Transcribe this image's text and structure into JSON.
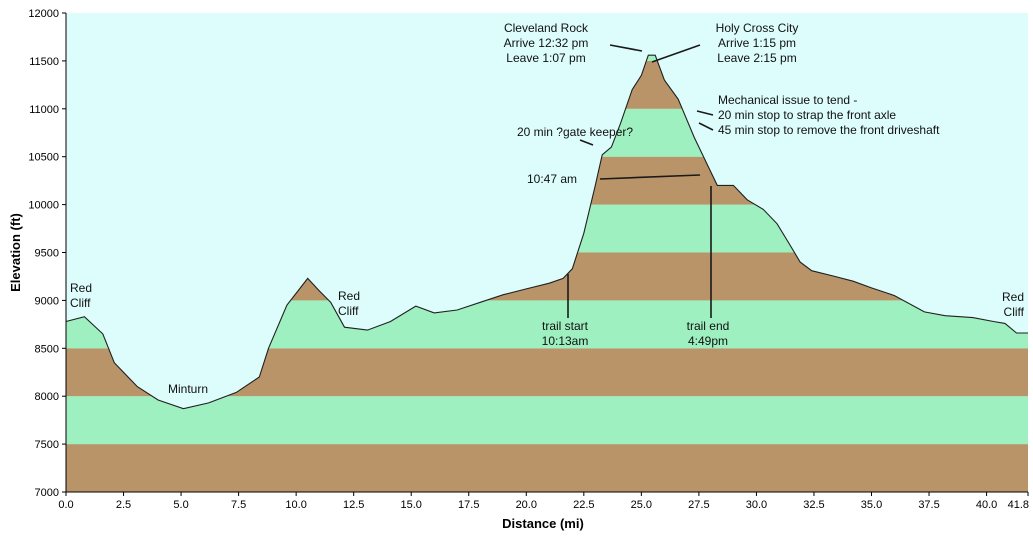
{
  "chart_data": {
    "type": "area",
    "xlabel": "Distance (mi)",
    "ylabel": "Elevation (ft)",
    "xlim": [
      0,
      41.8
    ],
    "ylim": [
      7000,
      12000
    ],
    "x_ticks": [
      "0.0",
      "2.5",
      "5.0",
      "7.5",
      "10.0",
      "12.5",
      "15.0",
      "17.5",
      "20.0",
      "22.5",
      "25.0",
      "27.5",
      "30.0",
      "32.5",
      "35.0",
      "37.5",
      "40.0",
      "41.8"
    ],
    "y_ticks": [
      "7000",
      "7500",
      "8000",
      "8500",
      "9000",
      "9500",
      "10000",
      "10500",
      "11000",
      "11500",
      "12000"
    ],
    "band_size": 500,
    "colors": {
      "sky": "#ddfcfc",
      "band_light": "#9ff0c0",
      "band_dark": "#b89468",
      "outline": "#202020",
      "axis": "#000000"
    },
    "profile": [
      [
        0.0,
        8780
      ],
      [
        0.8,
        8830
      ],
      [
        1.6,
        8650
      ],
      [
        2.1,
        8350
      ],
      [
        3.1,
        8100
      ],
      [
        4.0,
        7960
      ],
      [
        5.1,
        7870
      ],
      [
        6.2,
        7930
      ],
      [
        7.4,
        8040
      ],
      [
        8.4,
        8200
      ],
      [
        8.8,
        8500
      ],
      [
        9.6,
        8950
      ],
      [
        10.5,
        9230
      ],
      [
        11.0,
        9100
      ],
      [
        11.5,
        8980
      ],
      [
        12.1,
        8720
      ],
      [
        13.1,
        8690
      ],
      [
        14.1,
        8780
      ],
      [
        15.2,
        8940
      ],
      [
        16.0,
        8870
      ],
      [
        17.0,
        8900
      ],
      [
        18.0,
        8980
      ],
      [
        19.0,
        9060
      ],
      [
        20.0,
        9120
      ],
      [
        21.0,
        9180
      ],
      [
        21.6,
        9230
      ],
      [
        22.0,
        9330
      ],
      [
        22.5,
        9700
      ],
      [
        23.0,
        10200
      ],
      [
        23.3,
        10520
      ],
      [
        23.7,
        10600
      ],
      [
        24.1,
        10850
      ],
      [
        24.6,
        11200
      ],
      [
        25.0,
        11350
      ],
      [
        25.3,
        11560
      ],
      [
        25.6,
        11560
      ],
      [
        26.0,
        11300
      ],
      [
        26.6,
        11100
      ],
      [
        27.3,
        10700
      ],
      [
        27.8,
        10450
      ],
      [
        28.3,
        10200
      ],
      [
        29.0,
        10200
      ],
      [
        29.6,
        10050
      ],
      [
        30.3,
        9950
      ],
      [
        30.9,
        9800
      ],
      [
        31.4,
        9600
      ],
      [
        31.9,
        9400
      ],
      [
        32.4,
        9310
      ],
      [
        33.4,
        9250
      ],
      [
        34.2,
        9200
      ],
      [
        35.0,
        9130
      ],
      [
        36.0,
        9050
      ],
      [
        37.3,
        8880
      ],
      [
        38.2,
        8840
      ],
      [
        39.4,
        8820
      ],
      [
        40.3,
        8780
      ],
      [
        40.8,
        8760
      ],
      [
        41.3,
        8660
      ],
      [
        41.8,
        8660
      ]
    ],
    "annotations": [
      {
        "lines": [
          "Cleveland Rock",
          "Arrive 12:32 pm",
          "Leave 1:07 pm"
        ]
      },
      {
        "lines": [
          "Holy Cross City",
          "Arrive 1:15 pm",
          "Leave 2:15 pm"
        ]
      },
      {
        "lines": [
          "Mechanical issue to tend -",
          "20 min stop to strap the front axle",
          "45 min stop to remove the front driveshaft"
        ]
      },
      {
        "lines": [
          "20 min ?gate keeper?"
        ]
      },
      {
        "lines": [
          "10:47 am"
        ]
      },
      {
        "lines": [
          "trail start",
          "10:13am"
        ]
      },
      {
        "lines": [
          "trail end",
          "4:49pm"
        ]
      },
      {
        "lines": [
          "Red",
          "Cliff"
        ]
      },
      {
        "lines": [
          "Minturn"
        ]
      },
      {
        "lines": [
          "Red",
          "Cliff"
        ]
      },
      {
        "lines": [
          "Red",
          "Cliff"
        ]
      }
    ]
  }
}
